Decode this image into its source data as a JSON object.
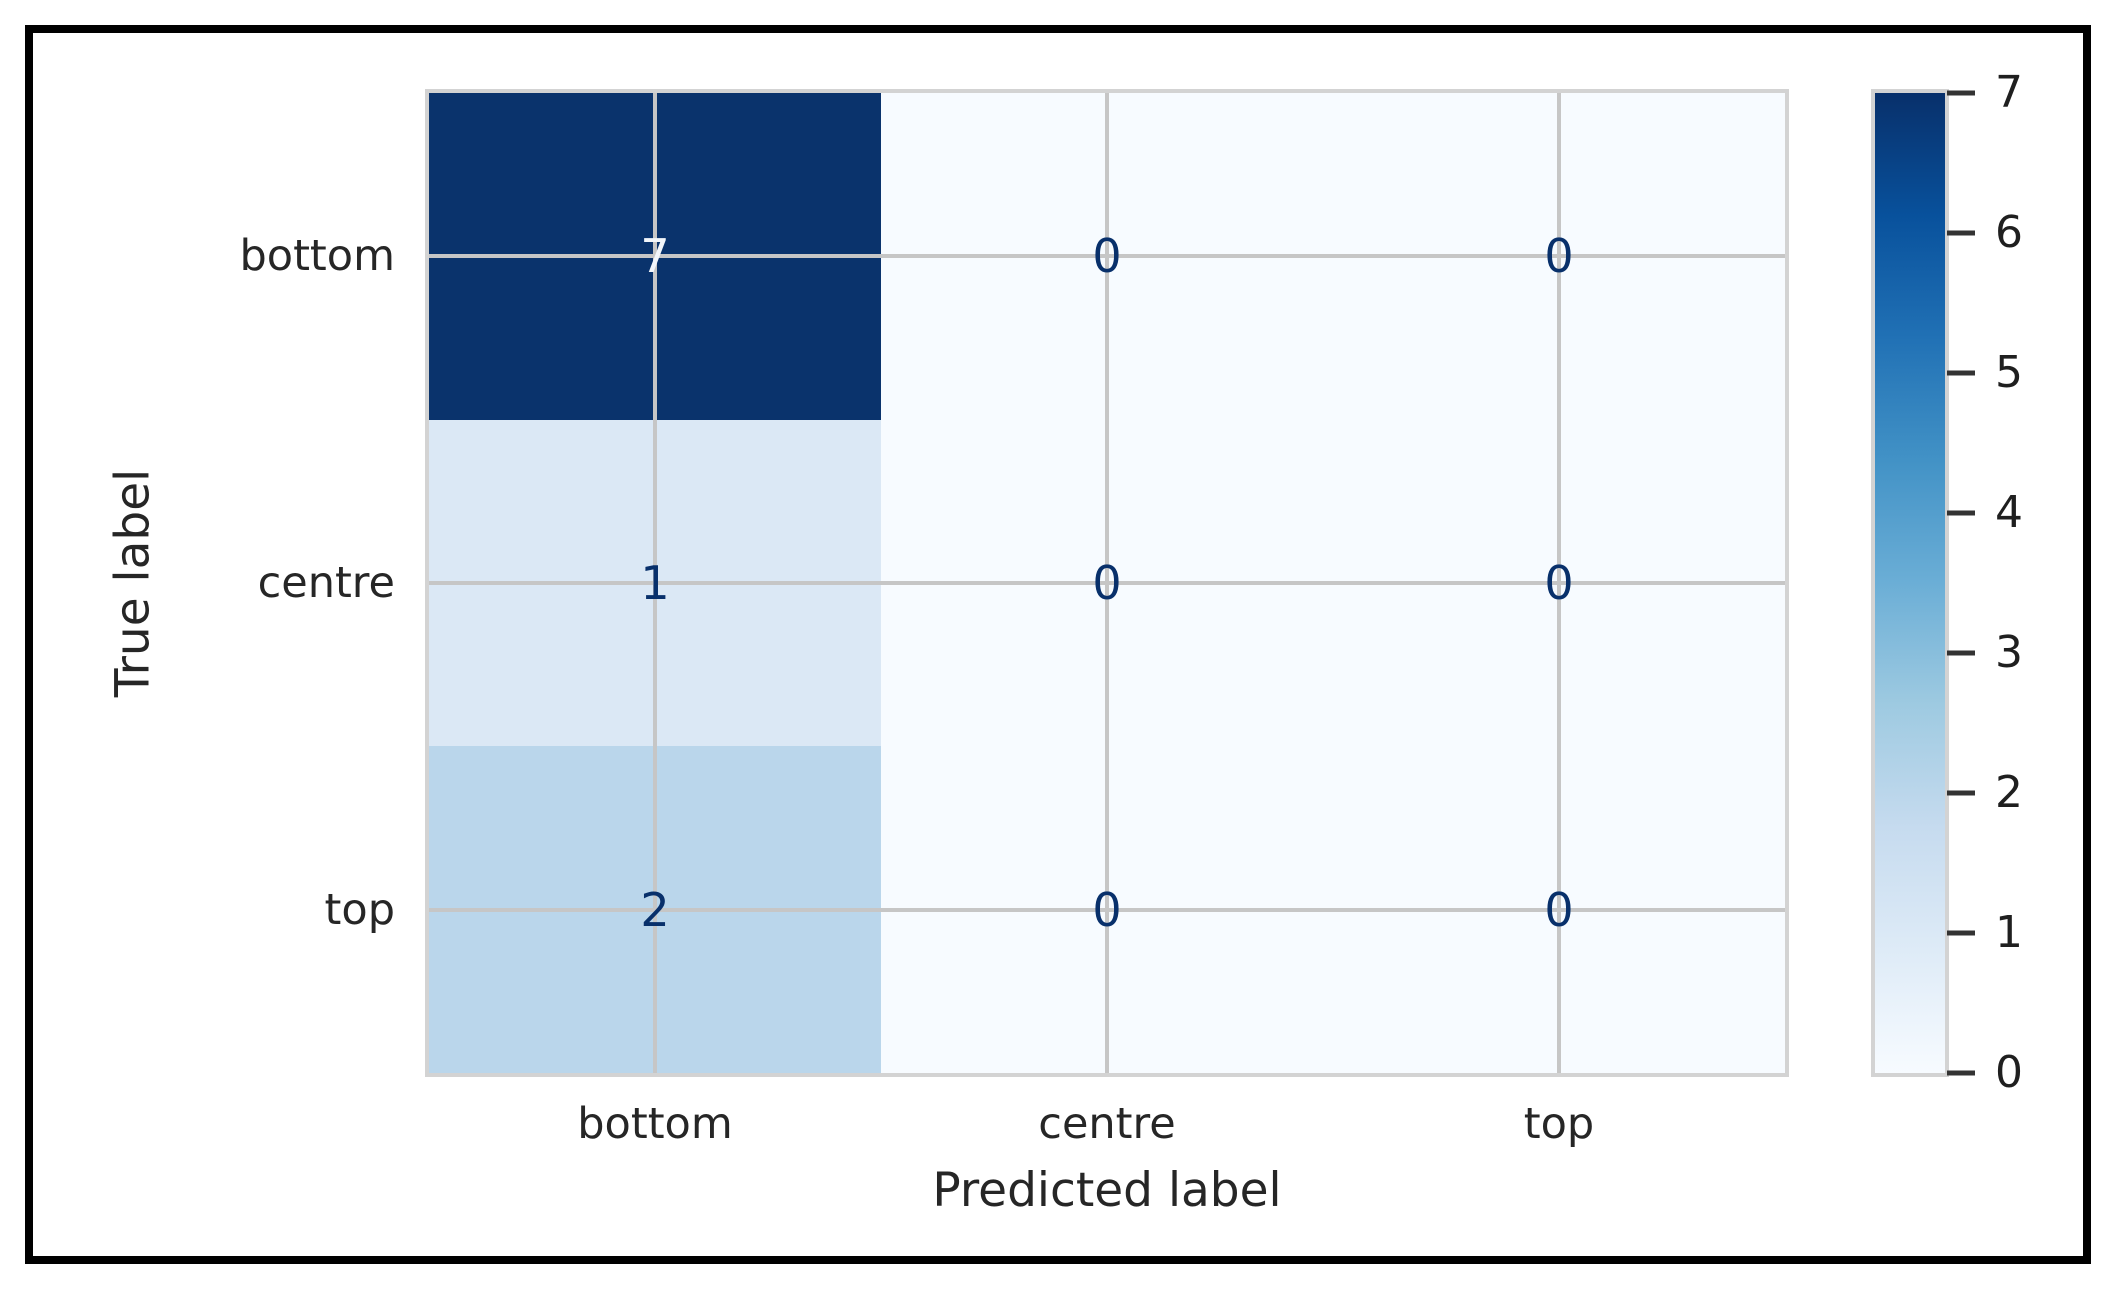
{
  "figure": {
    "frame_color": "#000000",
    "background_color": "#ffffff"
  },
  "chart_data": {
    "type": "heatmap",
    "subtype": "confusion-matrix",
    "title": "",
    "xlabel": "Predicted label",
    "ylabel": "True label",
    "x_tick_labels": [
      "bottom",
      "centre",
      "top"
    ],
    "y_tick_labels": [
      "bottom",
      "centre",
      "top"
    ],
    "matrix": [
      [
        7,
        0,
        0
      ],
      [
        1,
        0,
        0
      ],
      [
        2,
        0,
        0
      ]
    ],
    "vmin": 0,
    "vmax": 7,
    "colormap": "Blues",
    "grid": true,
    "grid_color": "#c6c6c6",
    "axes_edge_color": "#d3d3d3",
    "text_color": "#262626",
    "cell_colors": [
      [
        "#0a336c",
        "#f7fbff",
        "#f7fbff"
      ],
      [
        "#dbe8f5",
        "#f7fbff",
        "#f7fbff"
      ],
      [
        "#bad6eb",
        "#f7fbff",
        "#f7fbff"
      ]
    ],
    "annotation_colors": [
      [
        "#f2f6fb",
        "#08306b",
        "#08306b"
      ],
      [
        "#08306b",
        "#08306b",
        "#08306b"
      ],
      [
        "#08306b",
        "#08306b",
        "#08306b"
      ]
    ],
    "colorbar": {
      "position": "right",
      "ticks": [
        7,
        6,
        5,
        4,
        3,
        2,
        1,
        0
      ],
      "gradient_stops": [
        "#f7fbff",
        "#deebf7",
        "#c6dbef",
        "#9ecae1",
        "#6baed6",
        "#4292c6",
        "#2171b5",
        "#08519c",
        "#08306b"
      ]
    }
  }
}
